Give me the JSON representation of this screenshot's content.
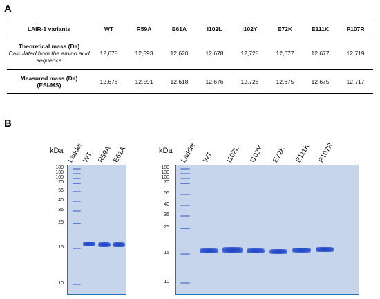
{
  "panel_a_label": "A",
  "panel_b_label": "B",
  "table": {
    "columns": [
      "LAIR-1 variants",
      "WT",
      "R59A",
      "E61A",
      "I102L",
      "I102Y",
      "E72K",
      "E111K",
      "P107R"
    ],
    "rows": [
      {
        "title": "Theoretical mass (Da)",
        "subtitle": "Calculated from the amino acid sequence",
        "values": [
          "12,678",
          "12,593",
          "12,620",
          "12,678",
          "12,728",
          "12,677",
          "12,677",
          "12,719"
        ]
      },
      {
        "title": "Measured mass (Da)",
        "subtitle": "(ESI-MS)",
        "values": [
          "12,676",
          "12,591",
          "12,618",
          "12,676",
          "12,726",
          "12,675",
          "12,675",
          "12,717"
        ]
      }
    ]
  },
  "gels": {
    "unit_label": "kDa",
    "markers": [
      "180",
      "130",
      "100",
      "70",
      "55",
      "40",
      "35",
      "25",
      "15",
      "10"
    ],
    "left_lanes": [
      "Ladder",
      "WT",
      "R59A",
      "E61A"
    ],
    "right_lanes": [
      "Ladder",
      "WT",
      "I102L",
      "I102Y",
      "E72K",
      "E111K",
      "P107R"
    ]
  }
}
